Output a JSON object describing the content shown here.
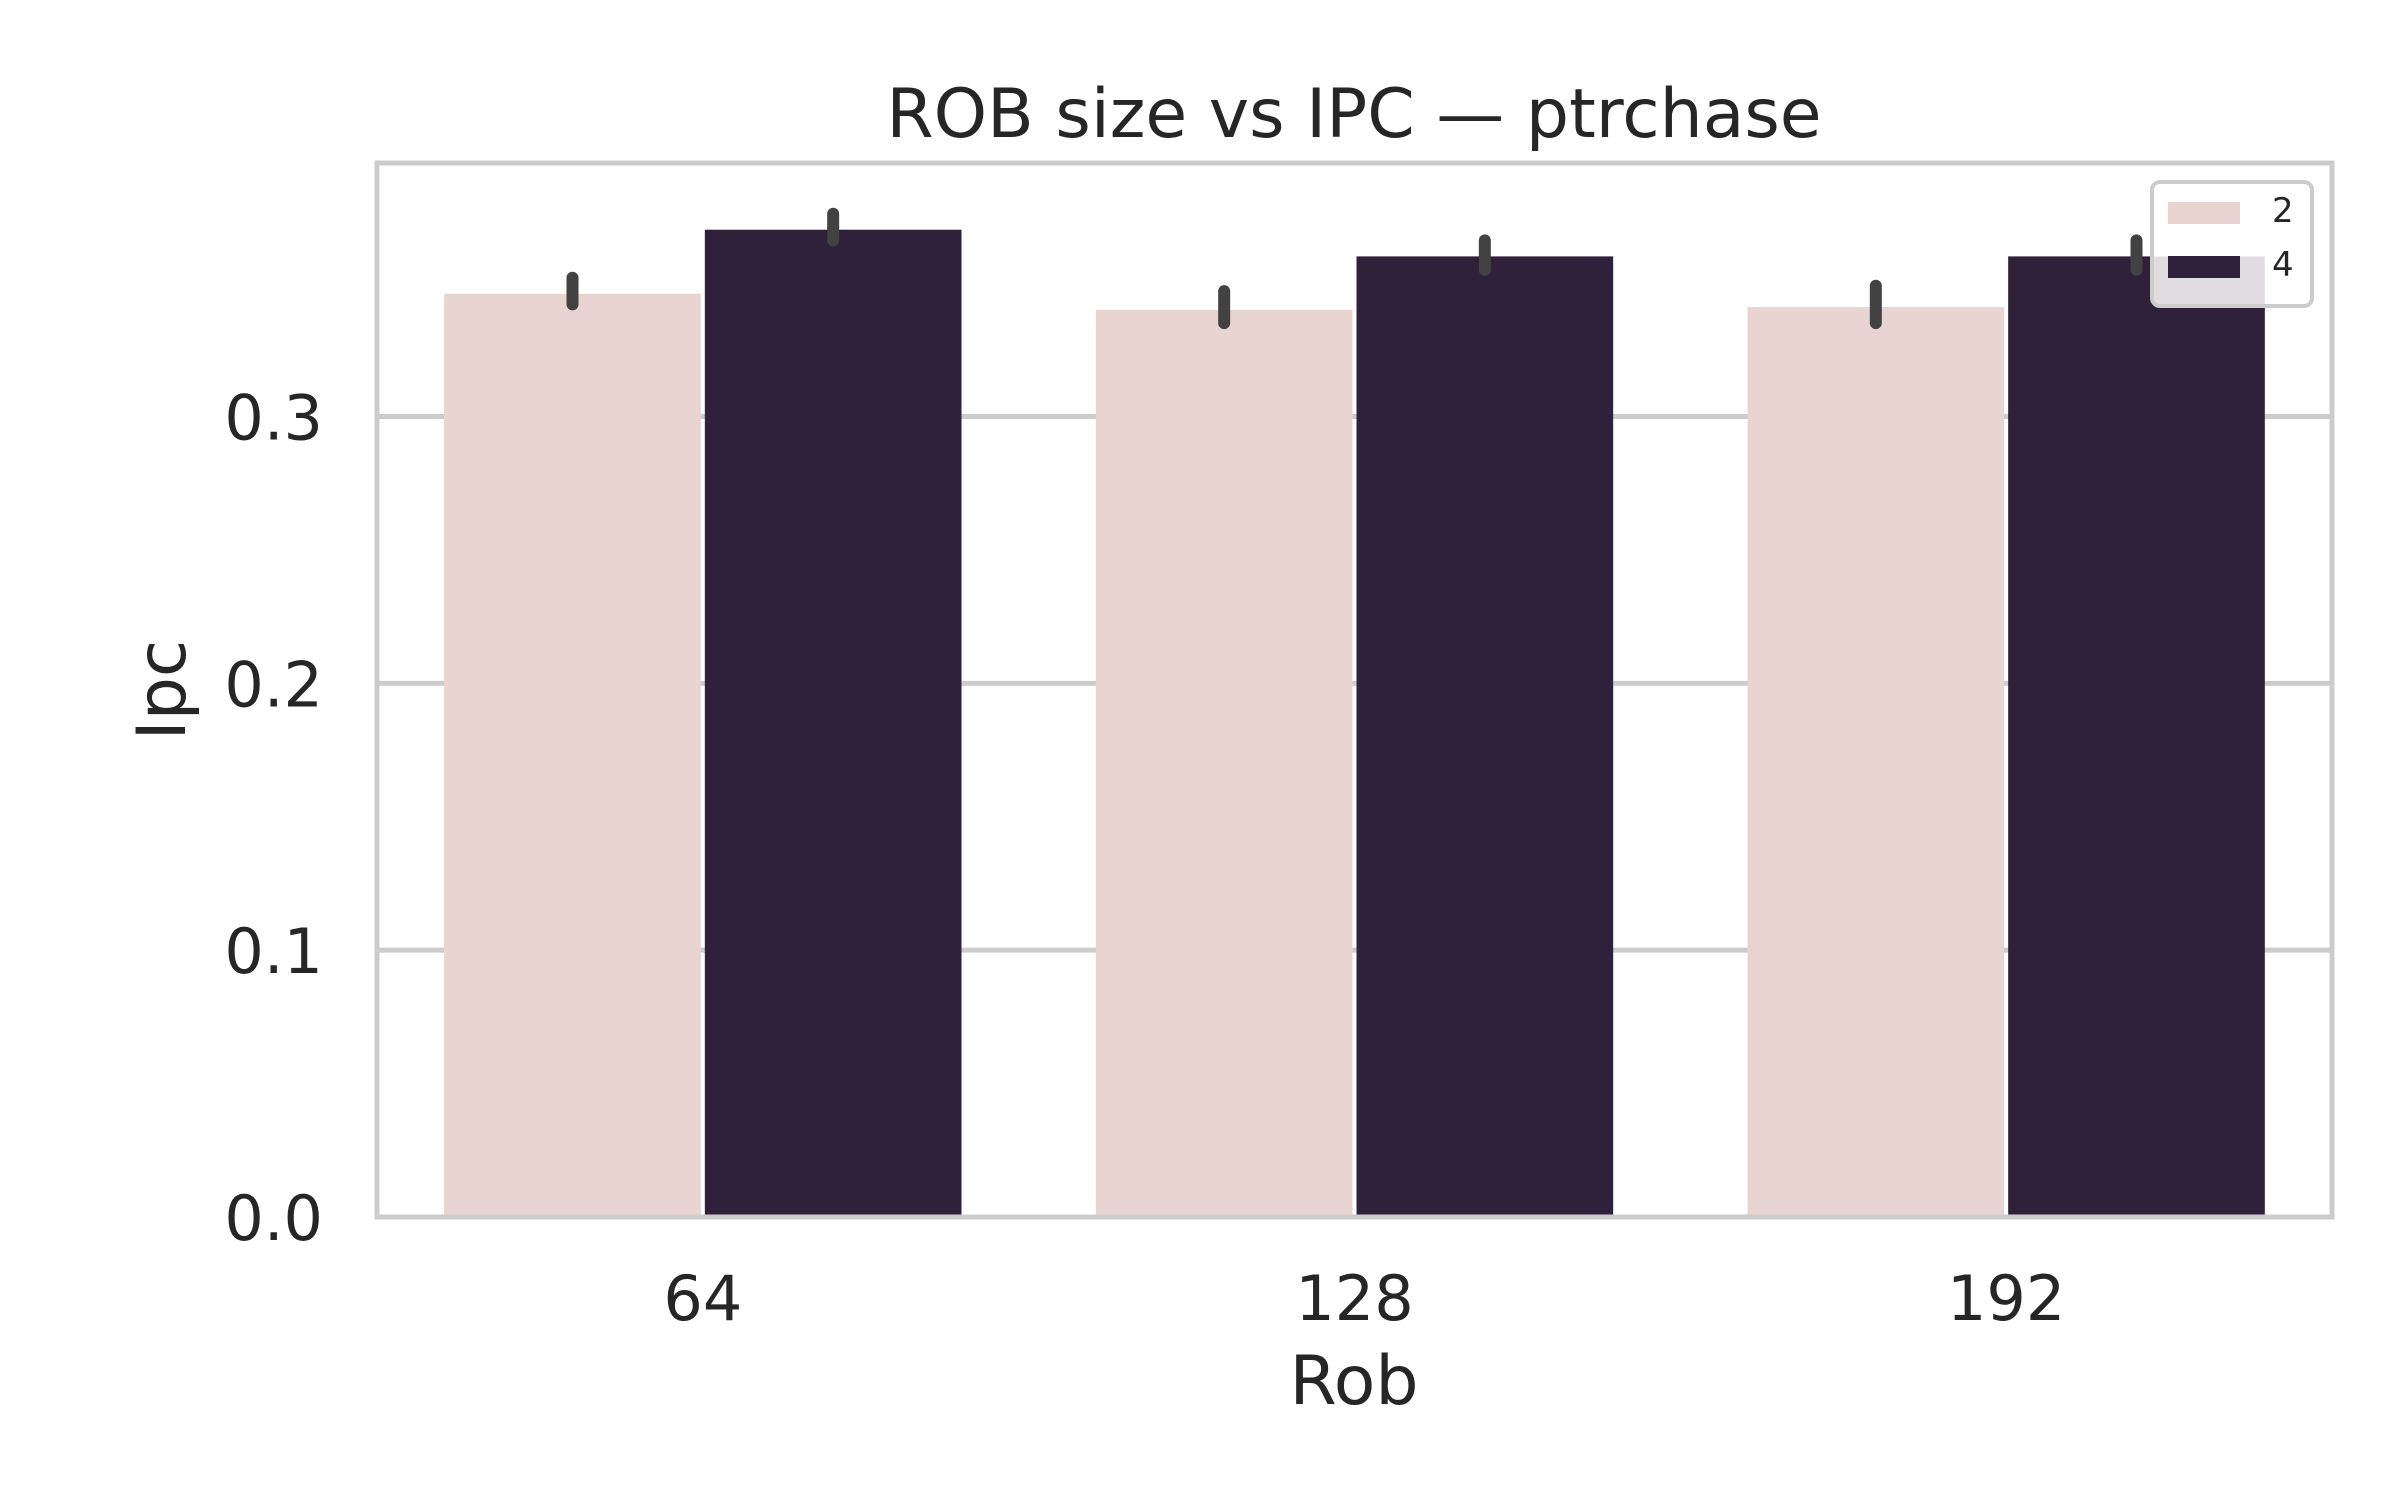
{
  "chart_data": {
    "type": "bar",
    "title": "ROB size vs IPC — ptrchase",
    "xlabel": "Rob",
    "ylabel": "Ipc",
    "categories": [
      "64",
      "128",
      "192"
    ],
    "ylim": [
      0,
      0.395
    ],
    "yticks": [
      0.0,
      0.1,
      0.2,
      0.3
    ],
    "ytick_labels": [
      "0.0",
      "0.1",
      "0.2",
      "0.3"
    ],
    "grid": "horizontal",
    "legend_position": "top-right",
    "series": [
      {
        "name": "2",
        "color": "#e8d5d1",
        "values": [
          0.346,
          0.34,
          0.341
        ],
        "err_low": [
          0.342,
          0.335,
          0.335
        ],
        "err_high": [
          0.352,
          0.347,
          0.349
        ]
      },
      {
        "name": "4",
        "color": "#30213a",
        "values": [
          0.37,
          0.36,
          0.36
        ],
        "err_low": [
          0.366,
          0.355,
          0.355
        ],
        "err_high": [
          0.376,
          0.366,
          0.366
        ]
      }
    ]
  }
}
